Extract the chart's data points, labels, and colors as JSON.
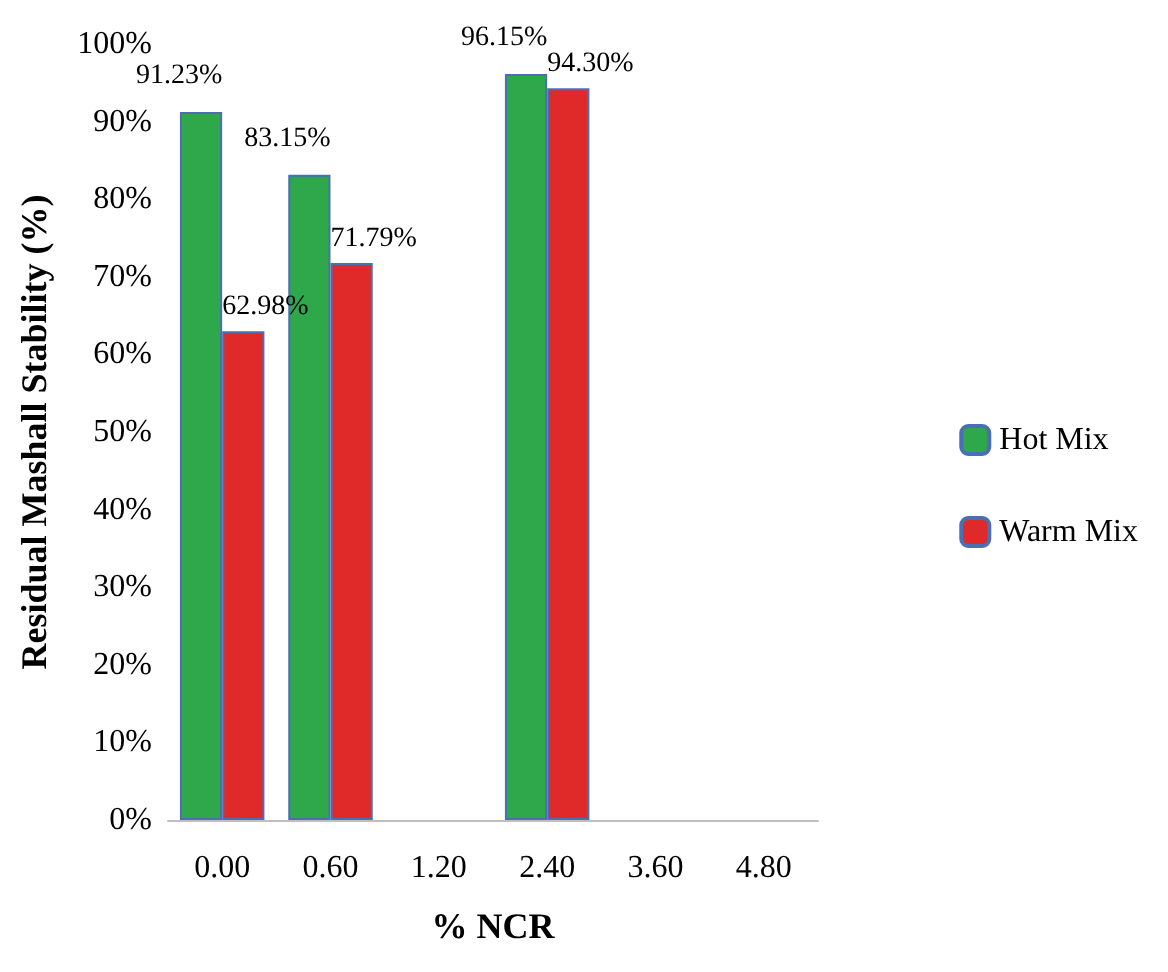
{
  "chart_data": {
    "type": "bar",
    "xlabel": "% NCR",
    "ylabel": "Residual Mashall Stability (%)",
    "categories": [
      "0.00",
      "0.60",
      "1.20",
      "2.40",
      "3.60",
      "4.80"
    ],
    "series": [
      {
        "name": "Hot Mix",
        "color": "#2ea84a",
        "values": [
          91.23,
          83.15,
          null,
          96.15,
          null,
          null
        ],
        "value_labels": [
          "91.23%",
          "83.15%",
          null,
          "96.15%",
          null,
          null
        ]
      },
      {
        "name": "Warm Mix",
        "color": "#e02a2a",
        "values": [
          62.98,
          71.79,
          null,
          94.3,
          null,
          null
        ],
        "value_labels": [
          "62.98%",
          "71.79%",
          null,
          "94.30%",
          null,
          null
        ]
      }
    ],
    "ylim": [
      0,
      100
    ],
    "yticks": [
      {
        "value": 0,
        "label": "0%"
      },
      {
        "value": 10,
        "label": "10%"
      },
      {
        "value": 20,
        "label": "20%"
      },
      {
        "value": 30,
        "label": "30%"
      },
      {
        "value": 40,
        "label": "40%"
      },
      {
        "value": 50,
        "label": "50%"
      },
      {
        "value": 60,
        "label": "60%"
      },
      {
        "value": 70,
        "label": "70%"
      },
      {
        "value": 80,
        "label": "80%"
      },
      {
        "value": 90,
        "label": "90%"
      },
      {
        "value": 100,
        "label": "100%"
      }
    ],
    "grid": false,
    "legend": "right"
  }
}
